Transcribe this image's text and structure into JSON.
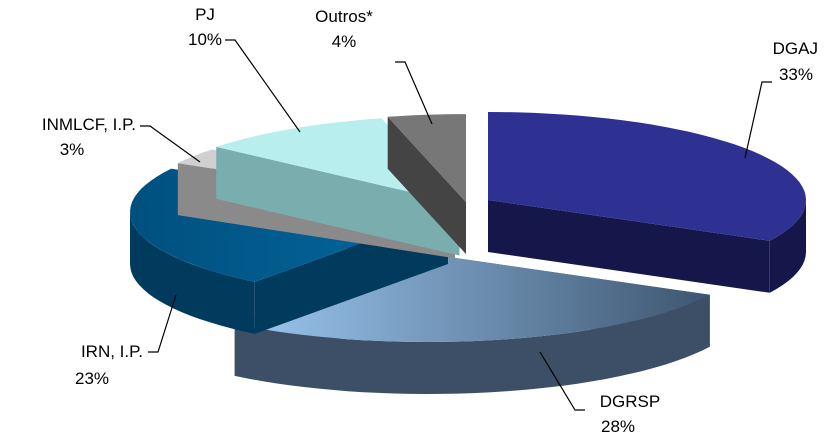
{
  "chart_data": {
    "type": "pie",
    "title": "",
    "style": "3d-exploded",
    "slices": [
      {
        "label": "DGAJ",
        "value": 33,
        "value_label": "33%",
        "color": "#2e3192",
        "dark": "#15164a"
      },
      {
        "label": "DGRSP",
        "value": 28,
        "value_label": "28%",
        "color": "#8ebbeb",
        "dark": "#3d4f66"
      },
      {
        "label": "IRN, I.P.",
        "value": 23,
        "value_label": "23%",
        "color": "#005a8c",
        "dark": "#003a5c"
      },
      {
        "label": "INMLCF, I.P.",
        "value": 3,
        "value_label": "3%",
        "color": "#d0d0d0",
        "dark": "#8a8a8a"
      },
      {
        "label": "PJ",
        "value": 10,
        "value_label": "10%",
        "color": "#b8eeee",
        "dark": "#7aaeae"
      },
      {
        "label": "Outros*",
        "value": 4,
        "value_label": "4%",
        "color": "#777777",
        "dark": "#444444"
      }
    ]
  }
}
